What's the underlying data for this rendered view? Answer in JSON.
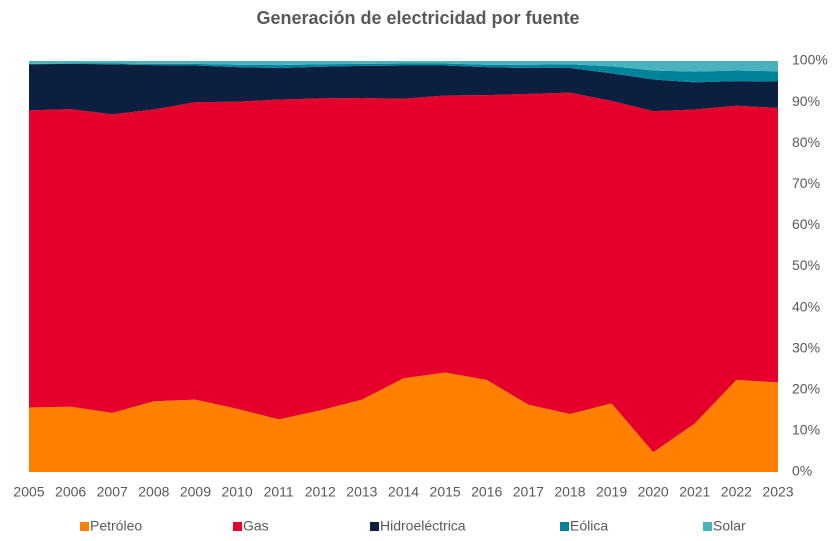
{
  "chart_data": {
    "type": "stacked_area",
    "title": "Generación de electricidad por fuente",
    "categories": [
      "2005",
      "2006",
      "2007",
      "2008",
      "2009",
      "2010",
      "2011",
      "2012",
      "2013",
      "2014",
      "2015",
      "2016",
      "2017",
      "2018",
      "2019",
      "2020",
      "2021",
      "2022",
      "2023"
    ],
    "series": [
      {
        "name": "Petróleo",
        "color": "#ff8000",
        "values": [
          15.7,
          15.9,
          14.4,
          17.2,
          17.6,
          15.4,
          12.8,
          15.0,
          17.6,
          22.8,
          24.2,
          22.4,
          16.4,
          14.1,
          16.7,
          4.8,
          11.8,
          22.4,
          21.8
        ]
      },
      {
        "name": "Gas",
        "color": "#e4002b",
        "values": [
          72.3,
          72.4,
          72.6,
          71.0,
          72.4,
          74.7,
          77.8,
          75.9,
          73.4,
          68.0,
          67.4,
          69.3,
          75.6,
          78.2,
          73.6,
          83.0,
          76.4,
          66.7,
          66.8
        ]
      },
      {
        "name": "Hidroeléctrica",
        "color": "#0c1f3f",
        "values": [
          11.2,
          11.0,
          12.2,
          10.8,
          8.9,
          8.4,
          7.7,
          7.7,
          7.8,
          8.1,
          7.3,
          6.8,
          6.3,
          6.0,
          6.7,
          7.7,
          6.6,
          6.0,
          6.4
        ]
      },
      {
        "name": "Eólica",
        "color": "#00829b",
        "values": [
          0.1,
          0.1,
          0.2,
          0.3,
          0.4,
          0.6,
          0.7,
          0.6,
          0.5,
          0.5,
          0.5,
          0.6,
          0.8,
          0.9,
          1.7,
          2.2,
          2.6,
          2.6,
          2.5
        ]
      },
      {
        "name": "Solar",
        "color": "#4ab2bd",
        "values": [
          0.7,
          0.6,
          0.6,
          0.7,
          0.7,
          0.9,
          1.0,
          0.8,
          0.7,
          0.6,
          0.6,
          0.9,
          0.9,
          0.8,
          1.3,
          2.3,
          2.6,
          2.3,
          2.5
        ]
      }
    ],
    "ylim": [
      0,
      100
    ],
    "yticks": [
      {
        "value": 0,
        "label": "0%"
      },
      {
        "value": 10,
        "label": "10%"
      },
      {
        "value": 20,
        "label": "20%"
      },
      {
        "value": 30,
        "label": "30%"
      },
      {
        "value": 40,
        "label": "40%"
      },
      {
        "value": 50,
        "label": "50%"
      },
      {
        "value": 60,
        "label": "60%"
      },
      {
        "value": 70,
        "label": "70%"
      },
      {
        "value": 80,
        "label": "80%"
      },
      {
        "value": 90,
        "label": "90%"
      },
      {
        "value": 100,
        "label": "100%"
      }
    ],
    "legend": "bottom"
  }
}
